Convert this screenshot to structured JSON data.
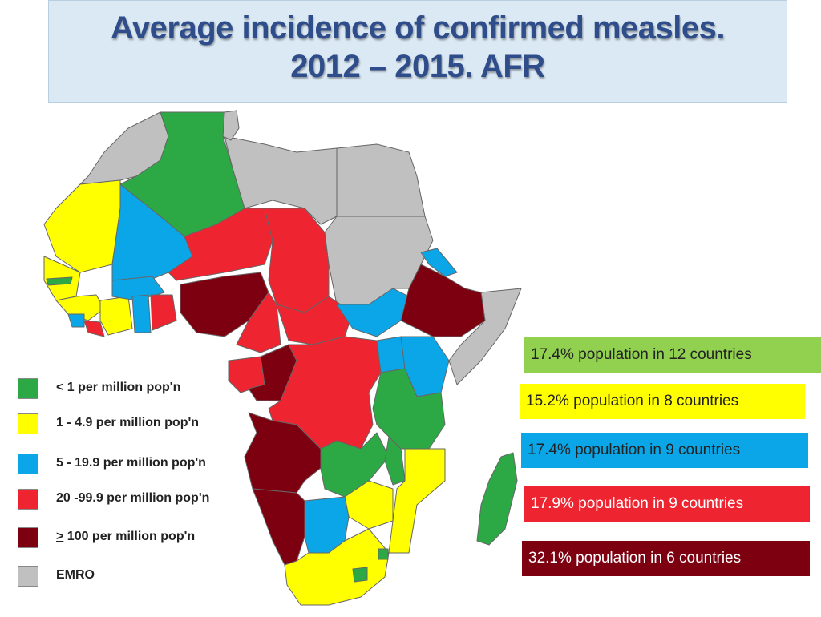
{
  "title": {
    "line1": "Average incidence of confirmed measles.",
    "line2": "2012 – 2015. AFR"
  },
  "colors": {
    "green": "#2ca945",
    "yellow": "#ffff00",
    "blue": "#0aa6e8",
    "red": "#ee2430",
    "darkred": "#7d0011",
    "gray": "#c0c0c0",
    "lightgreen": "#92d050"
  },
  "legend": [
    {
      "color": "#2ca945",
      "label": "< 1 per million pop'n"
    },
    {
      "color": "#ffff00",
      "label": "1 - 4.9 per million pop'n"
    },
    {
      "color": "#0aa6e8",
      "label": "5 - 19.9 per million pop'n"
    },
    {
      "color": "#ee2430",
      "label": "20 -99.9 per million pop'n"
    },
    {
      "color": "#7d0011",
      "label_prefix": ">",
      "label": " 100 per million pop'n"
    },
    {
      "color": "#c0c0c0",
      "label": "EMRO"
    }
  ],
  "stats": [
    {
      "text": "17.4% population  in 12 countries",
      "bg": "#92d050",
      "fg": "#222222"
    },
    {
      "text": "15.2% population  in 8 countries",
      "bg": "#ffff00",
      "fg": "#222222"
    },
    {
      "text": "17.4% population in 9 countries",
      "bg": "#0aa6e8",
      "fg": "#222222"
    },
    {
      "text": "17.9% population in 9 countries",
      "bg": "#ee2430",
      "fg": "#ffffff"
    },
    {
      "text": "32.1% population  in 6 countries",
      "bg": "#7d0011",
      "fg": "#ffffff"
    }
  ]
}
